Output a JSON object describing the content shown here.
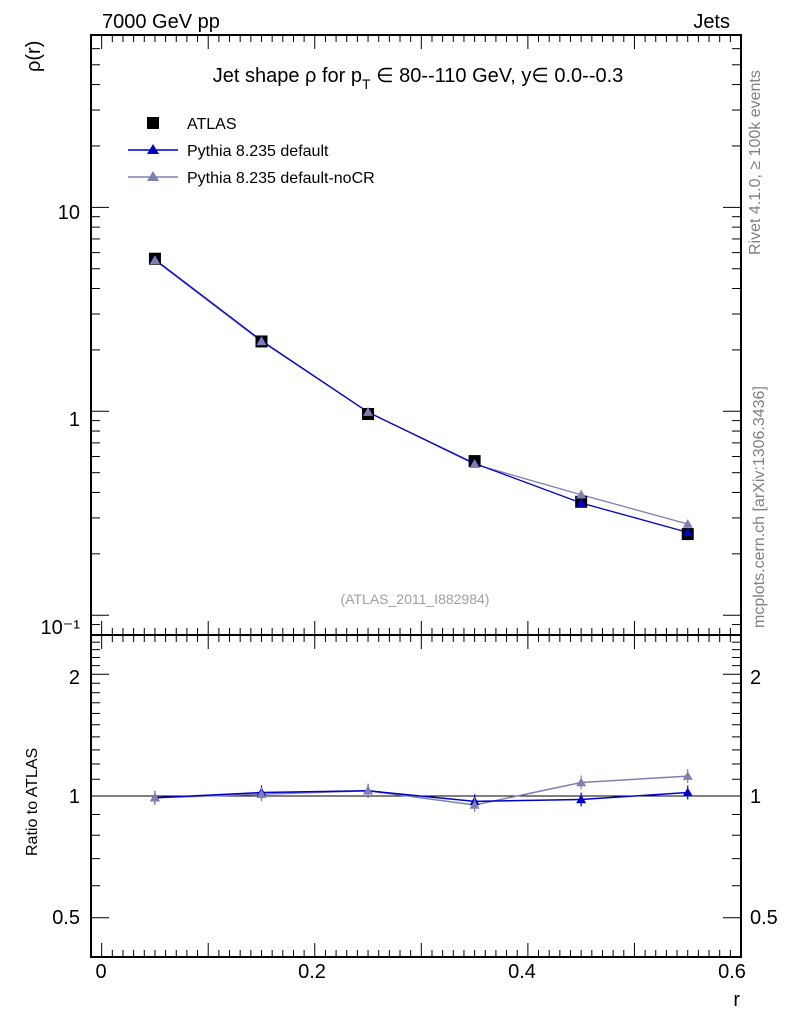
{
  "header": {
    "energy_label": "7000 GeV pp",
    "category_label": "Jets",
    "side_rivet": "Rivet 4.1.0, ≥ 100k events",
    "side_mcplots": "mcplots.cern.ch [arXiv:1306.3436]"
  },
  "chart_data": [
    {
      "type": "line",
      "panel": "main",
      "title": "Jet shape ρ for p_T ∈ 80--110 GeV, y∈ 0.0--0.3",
      "title_parts": {
        "pre": "Jet shape ρ for p",
        "sub": "T",
        "post": " ∈ 80--110 GeV, y∈ 0.0--0.3"
      },
      "ylabel": "ρ(r)",
      "yscale": "log",
      "ylim": [
        0.08,
        70
      ],
      "xlim": [
        -0.01,
        0.6
      ],
      "ytick_labels": [
        "10⁻¹",
        "1",
        "10"
      ],
      "watermark": "(ATLAS_2011_I882984)",
      "legend_position": "top-left",
      "x": [
        0.05,
        0.15,
        0.25,
        0.35,
        0.45,
        0.55
      ],
      "series": [
        {
          "name": "ATLAS",
          "color": "#000000",
          "marker": "square",
          "values": [
            5.6,
            2.2,
            0.97,
            0.57,
            0.36,
            0.25
          ]
        },
        {
          "name": "Pythia 8.235 default",
          "color": "#0000cc",
          "marker": "triangle",
          "values": [
            5.55,
            2.22,
            0.99,
            0.555,
            0.355,
            0.255
          ]
        },
        {
          "name": "Pythia 8.235 default-noCR",
          "color": "#8080b0",
          "marker": "triangle",
          "values": [
            5.5,
            2.2,
            0.99,
            0.55,
            0.39,
            0.28
          ]
        }
      ]
    },
    {
      "type": "line",
      "panel": "ratio",
      "ylabel": "Ratio to ATLAS",
      "xlabel": "r",
      "yscale": "log",
      "ylim": [
        0.4,
        2.5
      ],
      "xlim": [
        -0.01,
        0.6
      ],
      "ytick_labels": [
        "0.5",
        "1",
        "2"
      ],
      "xtick_labels": [
        "0",
        "0.2",
        "0.4",
        "0.6"
      ],
      "x": [
        0.05,
        0.15,
        0.25,
        0.35,
        0.45,
        0.55
      ],
      "series": [
        {
          "name": "Pythia 8.235 default",
          "color": "#0000cc",
          "values": [
            0.99,
            1.02,
            1.03,
            0.97,
            0.98,
            1.02
          ]
        },
        {
          "name": "Pythia 8.235 default-noCR",
          "color": "#8080b0",
          "values": [
            0.99,
            1.01,
            1.03,
            0.95,
            1.08,
            1.12
          ]
        }
      ]
    }
  ]
}
